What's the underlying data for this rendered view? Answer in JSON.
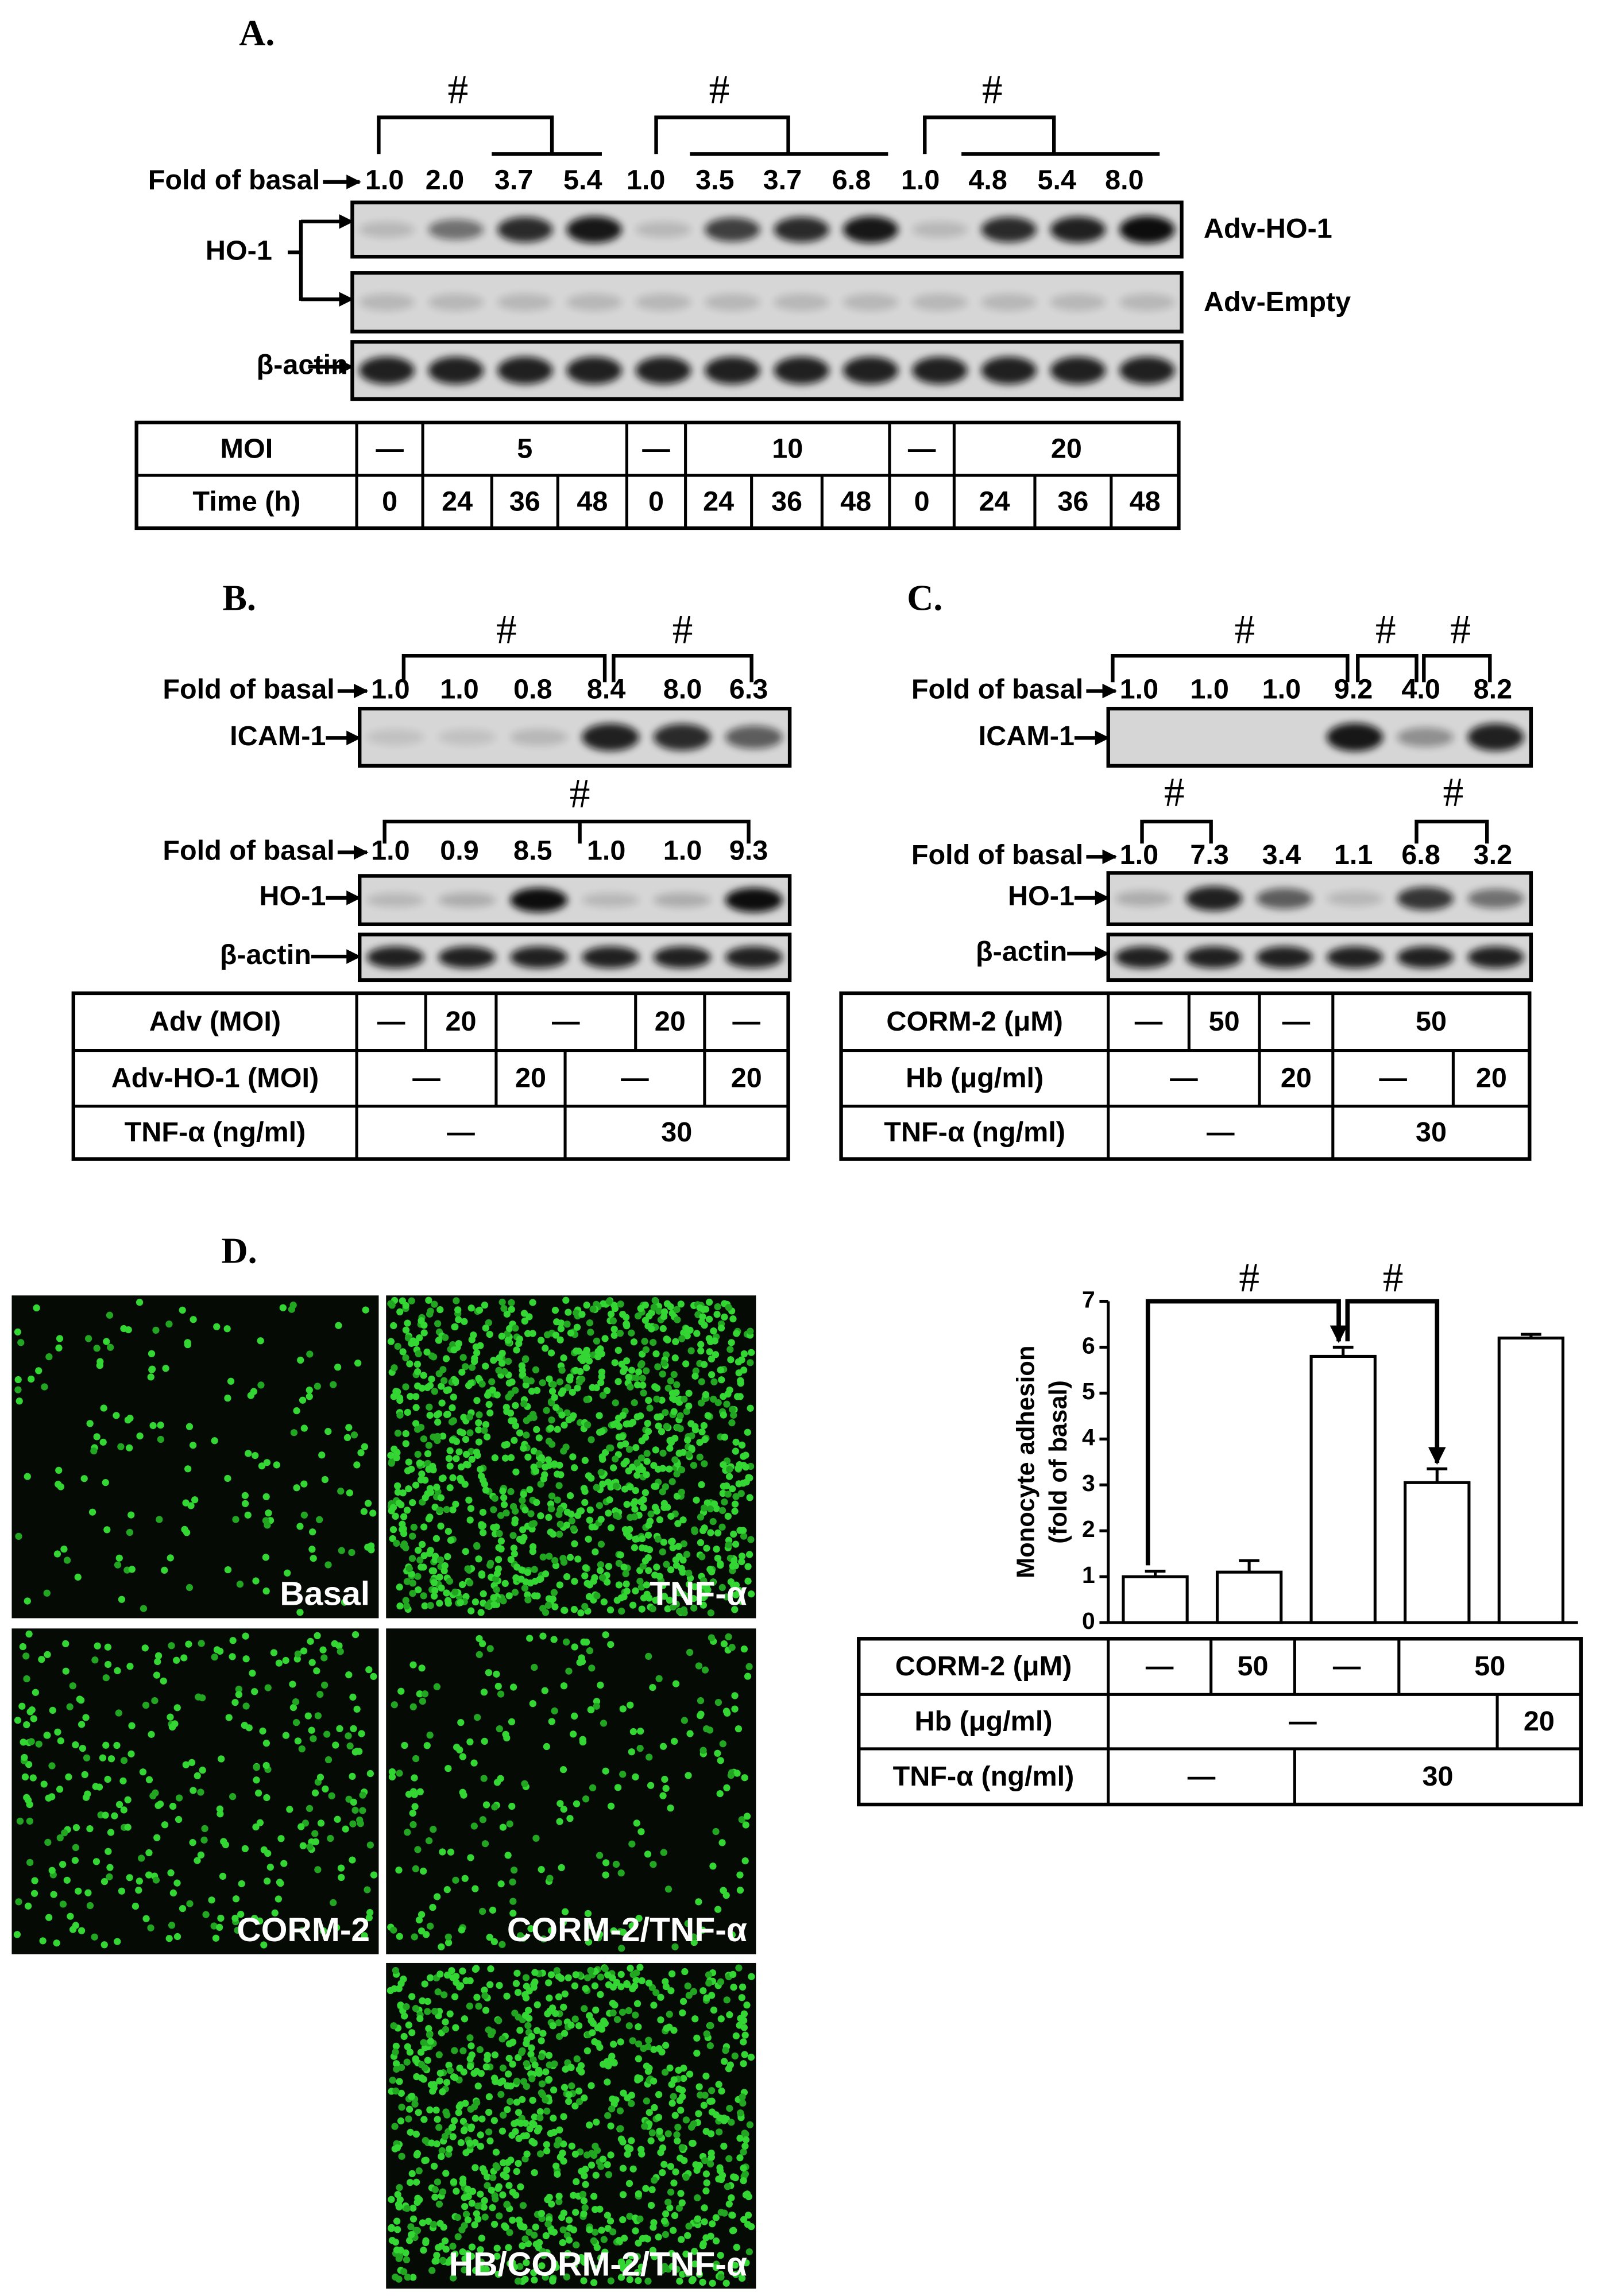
{
  "panel_a": {
    "label": "A.",
    "significance": [
      "#",
      "#",
      "#"
    ],
    "fold_label": "Fold of basal",
    "fold_values": [
      "1.0",
      "2.0",
      "3.7",
      "5.4",
      "1.0",
      "3.5",
      "3.7",
      "6.8",
      "1.0",
      "4.8",
      "5.4",
      "8.0"
    ],
    "ho1_label": "HO-1",
    "blot_labels": [
      "Adv-HO-1",
      "Adv-Empty"
    ],
    "actin_label": "β-actin",
    "table": {
      "rows": [
        [
          "MOI",
          "—",
          "5",
          "—",
          "10",
          "—",
          "20"
        ],
        [
          "Time (h)",
          "0",
          "24",
          "36",
          "48",
          "0",
          "24",
          "36",
          "48",
          "0",
          "24",
          "36",
          "48"
        ]
      ]
    }
  },
  "panel_b": {
    "label": "B.",
    "significance": [
      "#",
      "#",
      "#"
    ],
    "icam": {
      "fold_label": "Fold of basal",
      "fold_values": [
        "1.0",
        "1.0",
        "0.8",
        "8.4",
        "8.0",
        "6.3"
      ],
      "blot_label": "ICAM-1"
    },
    "ho1": {
      "fold_label": "Fold of basal",
      "fold_values": [
        "1.0",
        "0.9",
        "8.5",
        "1.0",
        "1.0",
        "9.3"
      ],
      "blot_label": "HO-1"
    },
    "actin_label": "β-actin",
    "table": {
      "rows": [
        [
          "Adv (MOI)",
          "—",
          "20",
          "—",
          "20",
          "—"
        ],
        [
          "Adv-HO-1 (MOI)",
          "—",
          "20",
          "—",
          "20"
        ],
        [
          "TNF-α (ng/ml)",
          "—",
          "30"
        ]
      ]
    }
  },
  "panel_c": {
    "label": "C.",
    "significance": [
      "#",
      "#",
      "#",
      "#",
      "#"
    ],
    "icam": {
      "fold_label": "Fold of basal",
      "fold_values": [
        "1.0",
        "1.0",
        "1.0",
        "9.2",
        "4.0",
        "8.2"
      ],
      "blot_label": "ICAM-1"
    },
    "ho1": {
      "fold_label": "Fold of basal",
      "fold_values": [
        "1.0",
        "7.3",
        "3.4",
        "1.1",
        "6.8",
        "3.2"
      ],
      "blot_label": "HO-1"
    },
    "actin_label": "β-actin",
    "table": {
      "rows": [
        [
          "CORM-2 (μM)",
          "—",
          "50",
          "—",
          "50"
        ],
        [
          "Hb (μg/ml)",
          "—",
          "20",
          "—",
          "20"
        ],
        [
          "TNF-α (ng/ml)",
          "—",
          "30"
        ]
      ]
    }
  },
  "panel_d": {
    "label": "D.",
    "images": [
      "Basal",
      "TNF-α",
      "CORM-2",
      "CORM-2/TNF-α",
      "HB/CORM-2/TNF-α"
    ],
    "table": {
      "rows": [
        [
          "CORM-2 (μM)",
          "—",
          "50",
          "—",
          "50"
        ],
        [
          "Hb (μg/ml)",
          "—",
          "20"
        ],
        [
          "TNF-α (ng/ml)",
          "—",
          "30"
        ]
      ]
    }
  },
  "chart_data": {
    "type": "bar",
    "y_label": [
      "Monocyte adhesion",
      "(fold of basal)"
    ],
    "values": [
      1.0,
      1.1,
      5.8,
      3.05,
      6.2
    ],
    "errors": [
      0.12,
      0.25,
      0.2,
      0.3,
      0.08
    ],
    "color": "#ffffff",
    "ylim": [
      0,
      7
    ],
    "yticks": [
      0,
      1,
      2,
      3,
      4,
      5,
      6,
      7
    ],
    "annotations": [
      "#",
      "#"
    ]
  }
}
